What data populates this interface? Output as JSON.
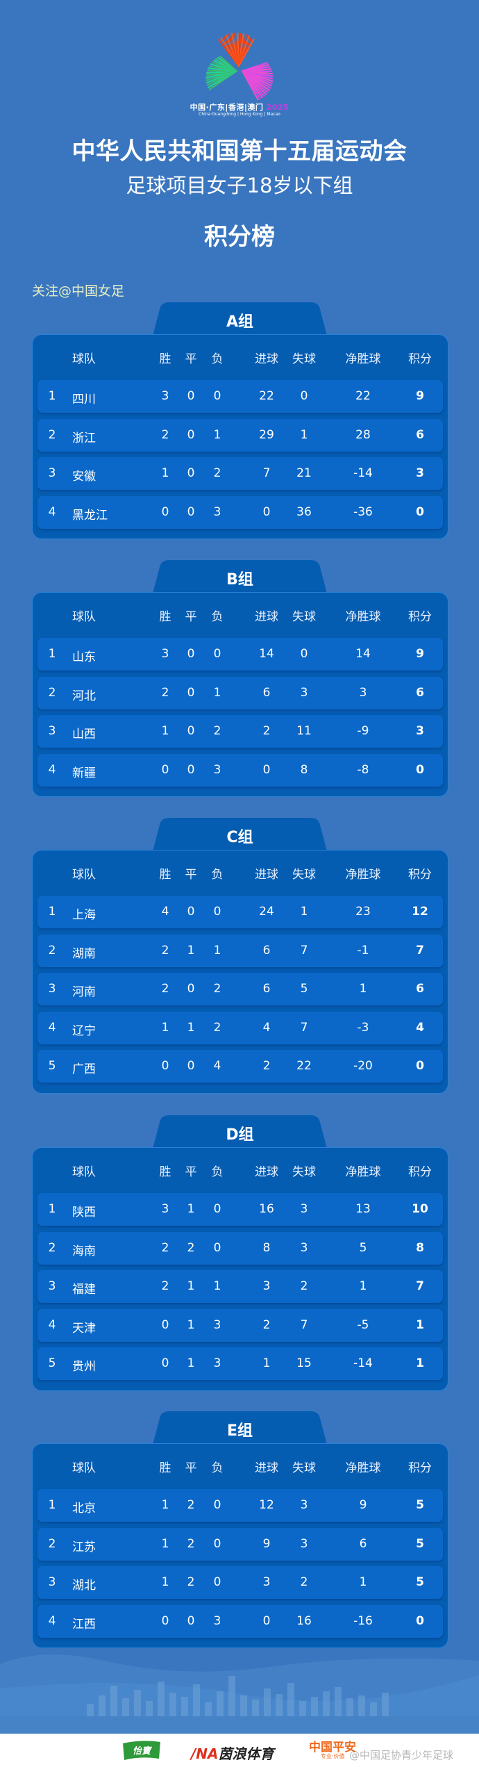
{
  "logo": {
    "line1": "中国·广东|香港|澳门",
    "year": "2025",
    "line2": "China·Guangdong | Hong Kong | Macao"
  },
  "header": {
    "title": "中华人民共和国第十五届运动会",
    "subtitle": "足球项目女子18岁以下组",
    "board": "积分榜",
    "follow": "关注@中国女足"
  },
  "columns": [
    "球队",
    "胜",
    "平",
    "负",
    "进球",
    "失球",
    "净胜球",
    "积分"
  ],
  "groups": [
    {
      "name": "A组",
      "rows": [
        [
          "1",
          "四川",
          "3",
          "0",
          "0",
          "22",
          "0",
          "22",
          "9"
        ],
        [
          "2",
          "浙江",
          "2",
          "0",
          "1",
          "29",
          "1",
          "28",
          "6"
        ],
        [
          "3",
          "安徽",
          "1",
          "0",
          "2",
          "7",
          "21",
          "-14",
          "3"
        ],
        [
          "4",
          "黑龙江",
          "0",
          "0",
          "3",
          "0",
          "36",
          "-36",
          "0"
        ]
      ]
    },
    {
      "name": "B组",
      "rows": [
        [
          "1",
          "山东",
          "3",
          "0",
          "0",
          "14",
          "0",
          "14",
          "9"
        ],
        [
          "2",
          "河北",
          "2",
          "0",
          "1",
          "6",
          "3",
          "3",
          "6"
        ],
        [
          "3",
          "山西",
          "1",
          "0",
          "2",
          "2",
          "11",
          "-9",
          "3"
        ],
        [
          "4",
          "新疆",
          "0",
          "0",
          "3",
          "0",
          "8",
          "-8",
          "0"
        ]
      ]
    },
    {
      "name": "C组",
      "rows": [
        [
          "1",
          "上海",
          "4",
          "0",
          "0",
          "24",
          "1",
          "23",
          "12"
        ],
        [
          "2",
          "湖南",
          "2",
          "1",
          "1",
          "6",
          "7",
          "-1",
          "7"
        ],
        [
          "3",
          "河南",
          "2",
          "0",
          "2",
          "6",
          "5",
          "1",
          "6"
        ],
        [
          "4",
          "辽宁",
          "1",
          "1",
          "2",
          "4",
          "7",
          "-3",
          "4"
        ],
        [
          "5",
          "广西",
          "0",
          "0",
          "4",
          "2",
          "22",
          "-20",
          "0"
        ]
      ]
    },
    {
      "name": "D组",
      "rows": [
        [
          "1",
          "陕西",
          "3",
          "1",
          "0",
          "16",
          "3",
          "13",
          "10"
        ],
        [
          "2",
          "海南",
          "2",
          "2",
          "0",
          "8",
          "3",
          "5",
          "8"
        ],
        [
          "3",
          "福建",
          "2",
          "1",
          "1",
          "3",
          "2",
          "1",
          "7"
        ],
        [
          "4",
          "天津",
          "0",
          "1",
          "3",
          "2",
          "7",
          "-5",
          "1"
        ],
        [
          "5",
          "贵州",
          "0",
          "1",
          "3",
          "1",
          "15",
          "-14",
          "1"
        ]
      ]
    },
    {
      "name": "E组",
      "rows": [
        [
          "1",
          "北京",
          "1",
          "2",
          "0",
          "12",
          "3",
          "9",
          "5"
        ],
        [
          "2",
          "江苏",
          "1",
          "2",
          "0",
          "9",
          "3",
          "6",
          "5"
        ],
        [
          "3",
          "湖北",
          "1",
          "2",
          "0",
          "3",
          "2",
          "1",
          "5"
        ],
        [
          "4",
          "江西",
          "0",
          "0",
          "3",
          "0",
          "16",
          "-16",
          "0"
        ]
      ]
    }
  ],
  "footer": {
    "sponsors": [
      "怡寶",
      "茵浪体育",
      "中国平安"
    ],
    "sponsor3_tagline": "专业·价值",
    "watermark": "@中国足协青少年足球"
  },
  "colors": {
    "background": "#3a76bf",
    "card": "#055db2",
    "row": "#0b68c8",
    "follow_text": "#e6efc6"
  }
}
